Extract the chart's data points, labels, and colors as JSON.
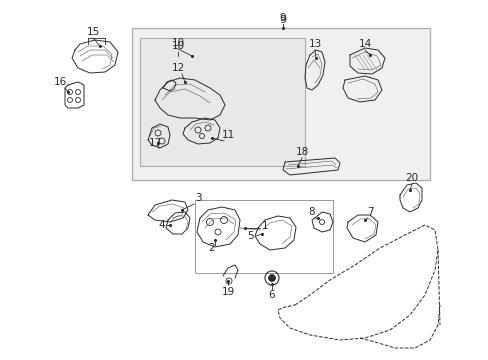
{
  "bg_color": "#ffffff",
  "fig_width": 4.89,
  "fig_height": 3.6,
  "dpi": 100,
  "line_color": "#2a2a2a",
  "box_fill": "#f0f0f0",
  "box_ec": "#888888",
  "inner_fill": "#e8e8e8"
}
